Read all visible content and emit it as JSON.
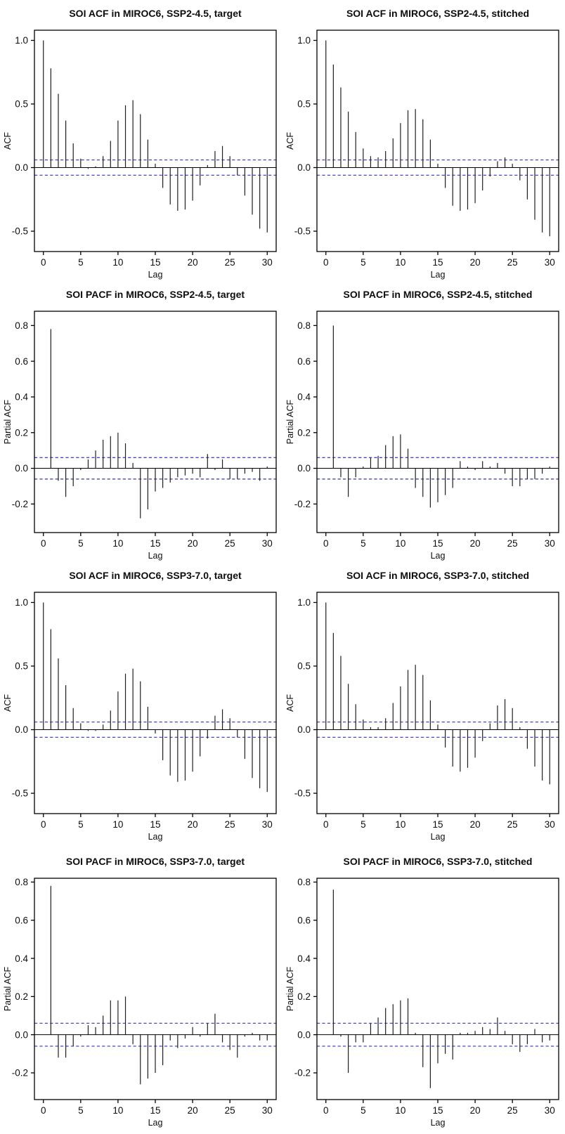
{
  "colors": {
    "bar": "#1f1f1f",
    "axis": "#000000",
    "text": "#0d0d0d",
    "ci_line": "#4848c4",
    "background": "#ffffff"
  },
  "layout_hints": {
    "rows": 4,
    "cols": 2,
    "grid": false,
    "legend": "none"
  },
  "chart_data": [
    {
      "type": "bar",
      "variant": "acf-stem",
      "title": "SOI ACF in MIROC6, SSP2-4.5, target",
      "xlabel": "Lag",
      "ylabel": "ACF",
      "ci": 0.06,
      "ci_line_style": "dashed",
      "xticks": [
        0,
        5,
        10,
        15,
        20,
        25,
        30
      ],
      "ytick_labels": [
        "1.0",
        "0.5",
        "0.0",
        "-0.5"
      ],
      "xlim": [
        -1.2,
        31.2
      ],
      "ylim": [
        -0.66,
        1.08
      ],
      "lags": [
        0,
        1,
        2,
        3,
        4,
        5,
        6,
        7,
        8,
        9,
        10,
        11,
        12,
        13,
        14,
        15,
        16,
        17,
        18,
        19,
        20,
        21,
        22,
        23,
        24,
        25,
        26,
        27,
        28,
        29,
        30
      ],
      "values": [
        1.0,
        0.78,
        0.58,
        0.37,
        0.19,
        0.07,
        -0.01,
        0.01,
        0.09,
        0.21,
        0.37,
        0.49,
        0.53,
        0.42,
        0.22,
        0.03,
        -0.16,
        -0.29,
        -0.34,
        -0.33,
        -0.26,
        -0.14,
        0.02,
        0.13,
        0.17,
        0.09,
        -0.06,
        -0.22,
        -0.37,
        -0.48,
        -0.51
      ]
    },
    {
      "type": "bar",
      "variant": "acf-stem",
      "title": "SOI ACF in MIROC6, SSP2-4.5, stitched",
      "xlabel": "Lag",
      "ylabel": "ACF",
      "ci": 0.06,
      "ci_line_style": "dashed",
      "xticks": [
        0,
        5,
        10,
        15,
        20,
        25,
        30
      ],
      "ytick_labels": [
        "1.0",
        "0.5",
        "0.0",
        "-0.5"
      ],
      "xlim": [
        -1.2,
        31.2
      ],
      "ylim": [
        -0.66,
        1.08
      ],
      "lags": [
        0,
        1,
        2,
        3,
        4,
        5,
        6,
        7,
        8,
        9,
        10,
        11,
        12,
        13,
        14,
        15,
        16,
        17,
        18,
        19,
        20,
        21,
        22,
        23,
        24,
        25,
        26,
        27,
        28,
        29,
        30
      ],
      "values": [
        1.0,
        0.81,
        0.63,
        0.44,
        0.28,
        0.15,
        0.09,
        0.08,
        0.13,
        0.23,
        0.35,
        0.45,
        0.46,
        0.38,
        0.22,
        0.03,
        -0.16,
        -0.3,
        -0.34,
        -0.33,
        -0.28,
        -0.18,
        -0.07,
        0.05,
        0.08,
        0.03,
        -0.1,
        -0.25,
        -0.41,
        -0.51,
        -0.54
      ]
    },
    {
      "type": "bar",
      "variant": "acf-stem",
      "title": "SOI PACF in MIROC6, SSP2-4.5, target",
      "xlabel": "Lag",
      "ylabel": "Partial ACF",
      "ci": 0.06,
      "ci_line_style": "dashed",
      "xticks": [
        0,
        5,
        10,
        15,
        20,
        25,
        30
      ],
      "ytick_labels": [
        "0.8",
        "0.6",
        "0.4",
        "0.2",
        "0.0",
        "-0.2"
      ],
      "xlim": [
        -1.2,
        31.2
      ],
      "ylim": [
        -0.36,
        0.88
      ],
      "lags": [
        1,
        2,
        3,
        4,
        5,
        6,
        7,
        8,
        9,
        10,
        11,
        12,
        13,
        14,
        15,
        16,
        17,
        18,
        19,
        20,
        21,
        22,
        23,
        24,
        25,
        26,
        27,
        28,
        29,
        30
      ],
      "values": [
        0.78,
        -0.07,
        -0.16,
        -0.1,
        -0.01,
        0.05,
        0.1,
        0.16,
        0.18,
        0.2,
        0.14,
        0.03,
        -0.28,
        -0.23,
        -0.13,
        -0.11,
        -0.08,
        -0.05,
        -0.04,
        -0.03,
        -0.05,
        0.08,
        -0.01,
        0.05,
        -0.06,
        -0.06,
        -0.03,
        -0.02,
        -0.07,
        0.01
      ]
    },
    {
      "type": "bar",
      "variant": "acf-stem",
      "title": "SOI PACF in MIROC6, SSP2-4.5, stitched",
      "xlabel": "Lag",
      "ylabel": "Partial ACF",
      "ci": 0.06,
      "ci_line_style": "dashed",
      "xticks": [
        0,
        5,
        10,
        15,
        20,
        25,
        30
      ],
      "ytick_labels": [
        "0.8",
        "0.6",
        "0.4",
        "0.2",
        "0.0",
        "-0.2"
      ],
      "xlim": [
        -1.2,
        31.2
      ],
      "ylim": [
        -0.36,
        0.88
      ],
      "lags": [
        1,
        2,
        3,
        4,
        5,
        6,
        7,
        8,
        9,
        10,
        11,
        12,
        13,
        14,
        15,
        16,
        17,
        18,
        19,
        20,
        21,
        22,
        23,
        24,
        25,
        26,
        27,
        28,
        29,
        30
      ],
      "values": [
        0.8,
        -0.05,
        -0.16,
        -0.05,
        0.01,
        0.06,
        0.07,
        0.13,
        0.18,
        0.19,
        0.11,
        -0.11,
        -0.16,
        -0.22,
        -0.19,
        -0.15,
        -0.11,
        0.04,
        0.01,
        -0.01,
        0.04,
        0.01,
        0.03,
        -0.03,
        -0.1,
        -0.1,
        -0.06,
        -0.06,
        -0.03,
        0.01
      ]
    },
    {
      "type": "bar",
      "variant": "acf-stem",
      "title": "SOI ACF in MIROC6, SSP3-7.0, target",
      "xlabel": "Lag",
      "ylabel": "ACF",
      "ci": 0.06,
      "ci_line_style": "dashed",
      "xticks": [
        0,
        5,
        10,
        15,
        20,
        25,
        30
      ],
      "ytick_labels": [
        "1.0",
        "0.5",
        "0.0",
        "-0.5"
      ],
      "xlim": [
        -1.2,
        31.2
      ],
      "ylim": [
        -0.66,
        1.08
      ],
      "lags": [
        0,
        1,
        2,
        3,
        4,
        5,
        6,
        7,
        8,
        9,
        10,
        11,
        12,
        13,
        14,
        15,
        16,
        17,
        18,
        19,
        20,
        21,
        22,
        23,
        24,
        25,
        26,
        27,
        28,
        29,
        30
      ],
      "values": [
        1.0,
        0.79,
        0.56,
        0.35,
        0.17,
        0.05,
        -0.01,
        -0.01,
        0.04,
        0.15,
        0.3,
        0.44,
        0.48,
        0.38,
        0.18,
        -0.03,
        -0.24,
        -0.36,
        -0.41,
        -0.4,
        -0.33,
        -0.21,
        -0.07,
        0.11,
        0.16,
        0.09,
        -0.06,
        -0.23,
        -0.38,
        -0.46,
        -0.49
      ]
    },
    {
      "type": "bar",
      "variant": "acf-stem",
      "title": "SOI ACF in MIROC6, SSP3-7.0, stitched",
      "xlabel": "Lag",
      "ylabel": "ACF",
      "ci": 0.06,
      "ci_line_style": "dashed",
      "xticks": [
        0,
        5,
        10,
        15,
        20,
        25,
        30
      ],
      "ytick_labels": [
        "1.0",
        "0.5",
        "0.0",
        "-0.5"
      ],
      "xlim": [
        -1.2,
        31.2
      ],
      "ylim": [
        -0.66,
        1.08
      ],
      "lags": [
        0,
        1,
        2,
        3,
        4,
        5,
        6,
        7,
        8,
        9,
        10,
        11,
        12,
        13,
        14,
        15,
        16,
        17,
        18,
        19,
        20,
        21,
        22,
        23,
        24,
        25,
        26,
        27,
        28,
        29,
        30
      ],
      "values": [
        1.0,
        0.76,
        0.58,
        0.36,
        0.2,
        0.08,
        0.02,
        0.02,
        0.09,
        0.21,
        0.34,
        0.47,
        0.51,
        0.43,
        0.23,
        0.04,
        -0.14,
        -0.29,
        -0.33,
        -0.3,
        -0.22,
        -0.09,
        0.05,
        0.19,
        0.24,
        0.17,
        0.02,
        -0.15,
        -0.29,
        -0.4,
        -0.43
      ]
    },
    {
      "type": "bar",
      "variant": "acf-stem",
      "title": "SOI PACF in MIROC6, SSP3-7.0, target",
      "xlabel": "Lag",
      "ylabel": "Partial ACF",
      "ci": 0.06,
      "ci_line_style": "dashed",
      "xticks": [
        0,
        5,
        10,
        15,
        20,
        25,
        30
      ],
      "ytick_labels": [
        "0.8",
        "0.6",
        "0.4",
        "0.2",
        "0.0",
        "-0.2"
      ],
      "xlim": [
        -1.2,
        31.2
      ],
      "ylim": [
        -0.34,
        0.82
      ],
      "lags": [
        1,
        2,
        3,
        4,
        5,
        6,
        7,
        8,
        9,
        10,
        11,
        12,
        13,
        14,
        15,
        16,
        17,
        18,
        19,
        20,
        21,
        22,
        23,
        24,
        25,
        26,
        27,
        28,
        29,
        30
      ],
      "values": [
        0.78,
        -0.12,
        -0.12,
        -0.06,
        -0.01,
        0.05,
        0.04,
        0.1,
        0.18,
        0.18,
        0.2,
        -0.05,
        -0.26,
        -0.23,
        -0.2,
        -0.16,
        -0.03,
        -0.07,
        -0.02,
        0.04,
        -0.01,
        0.06,
        0.11,
        -0.04,
        -0.08,
        -0.12,
        -0.01,
        0.01,
        -0.03,
        -0.03
      ]
    },
    {
      "type": "bar",
      "variant": "acf-stem",
      "title": "SOI PACF in MIROC6, SSP3-7.0, stitched",
      "xlabel": "Lag",
      "ylabel": "Partial ACF",
      "ci": 0.06,
      "ci_line_style": "dashed",
      "xticks": [
        0,
        5,
        10,
        15,
        20,
        25,
        30
      ],
      "ytick_labels": [
        "0.8",
        "0.6",
        "0.4",
        "0.2",
        "0.0",
        "-0.2"
      ],
      "xlim": [
        -1.2,
        31.2
      ],
      "ylim": [
        -0.34,
        0.82
      ],
      "lags": [
        1,
        2,
        3,
        4,
        5,
        6,
        7,
        8,
        9,
        10,
        11,
        12,
        13,
        14,
        15,
        16,
        17,
        18,
        19,
        20,
        21,
        22,
        23,
        24,
        25,
        26,
        27,
        28,
        29,
        30
      ],
      "values": [
        0.76,
        -0.01,
        -0.2,
        -0.04,
        -0.04,
        0.06,
        0.09,
        0.14,
        0.16,
        0.18,
        0.19,
        0.01,
        -0.17,
        -0.28,
        -0.15,
        -0.1,
        -0.13,
        0.01,
        0.01,
        0.02,
        0.04,
        0.03,
        0.09,
        0.02,
        -0.05,
        -0.09,
        -0.05,
        0.03,
        -0.04,
        -0.03
      ]
    }
  ]
}
